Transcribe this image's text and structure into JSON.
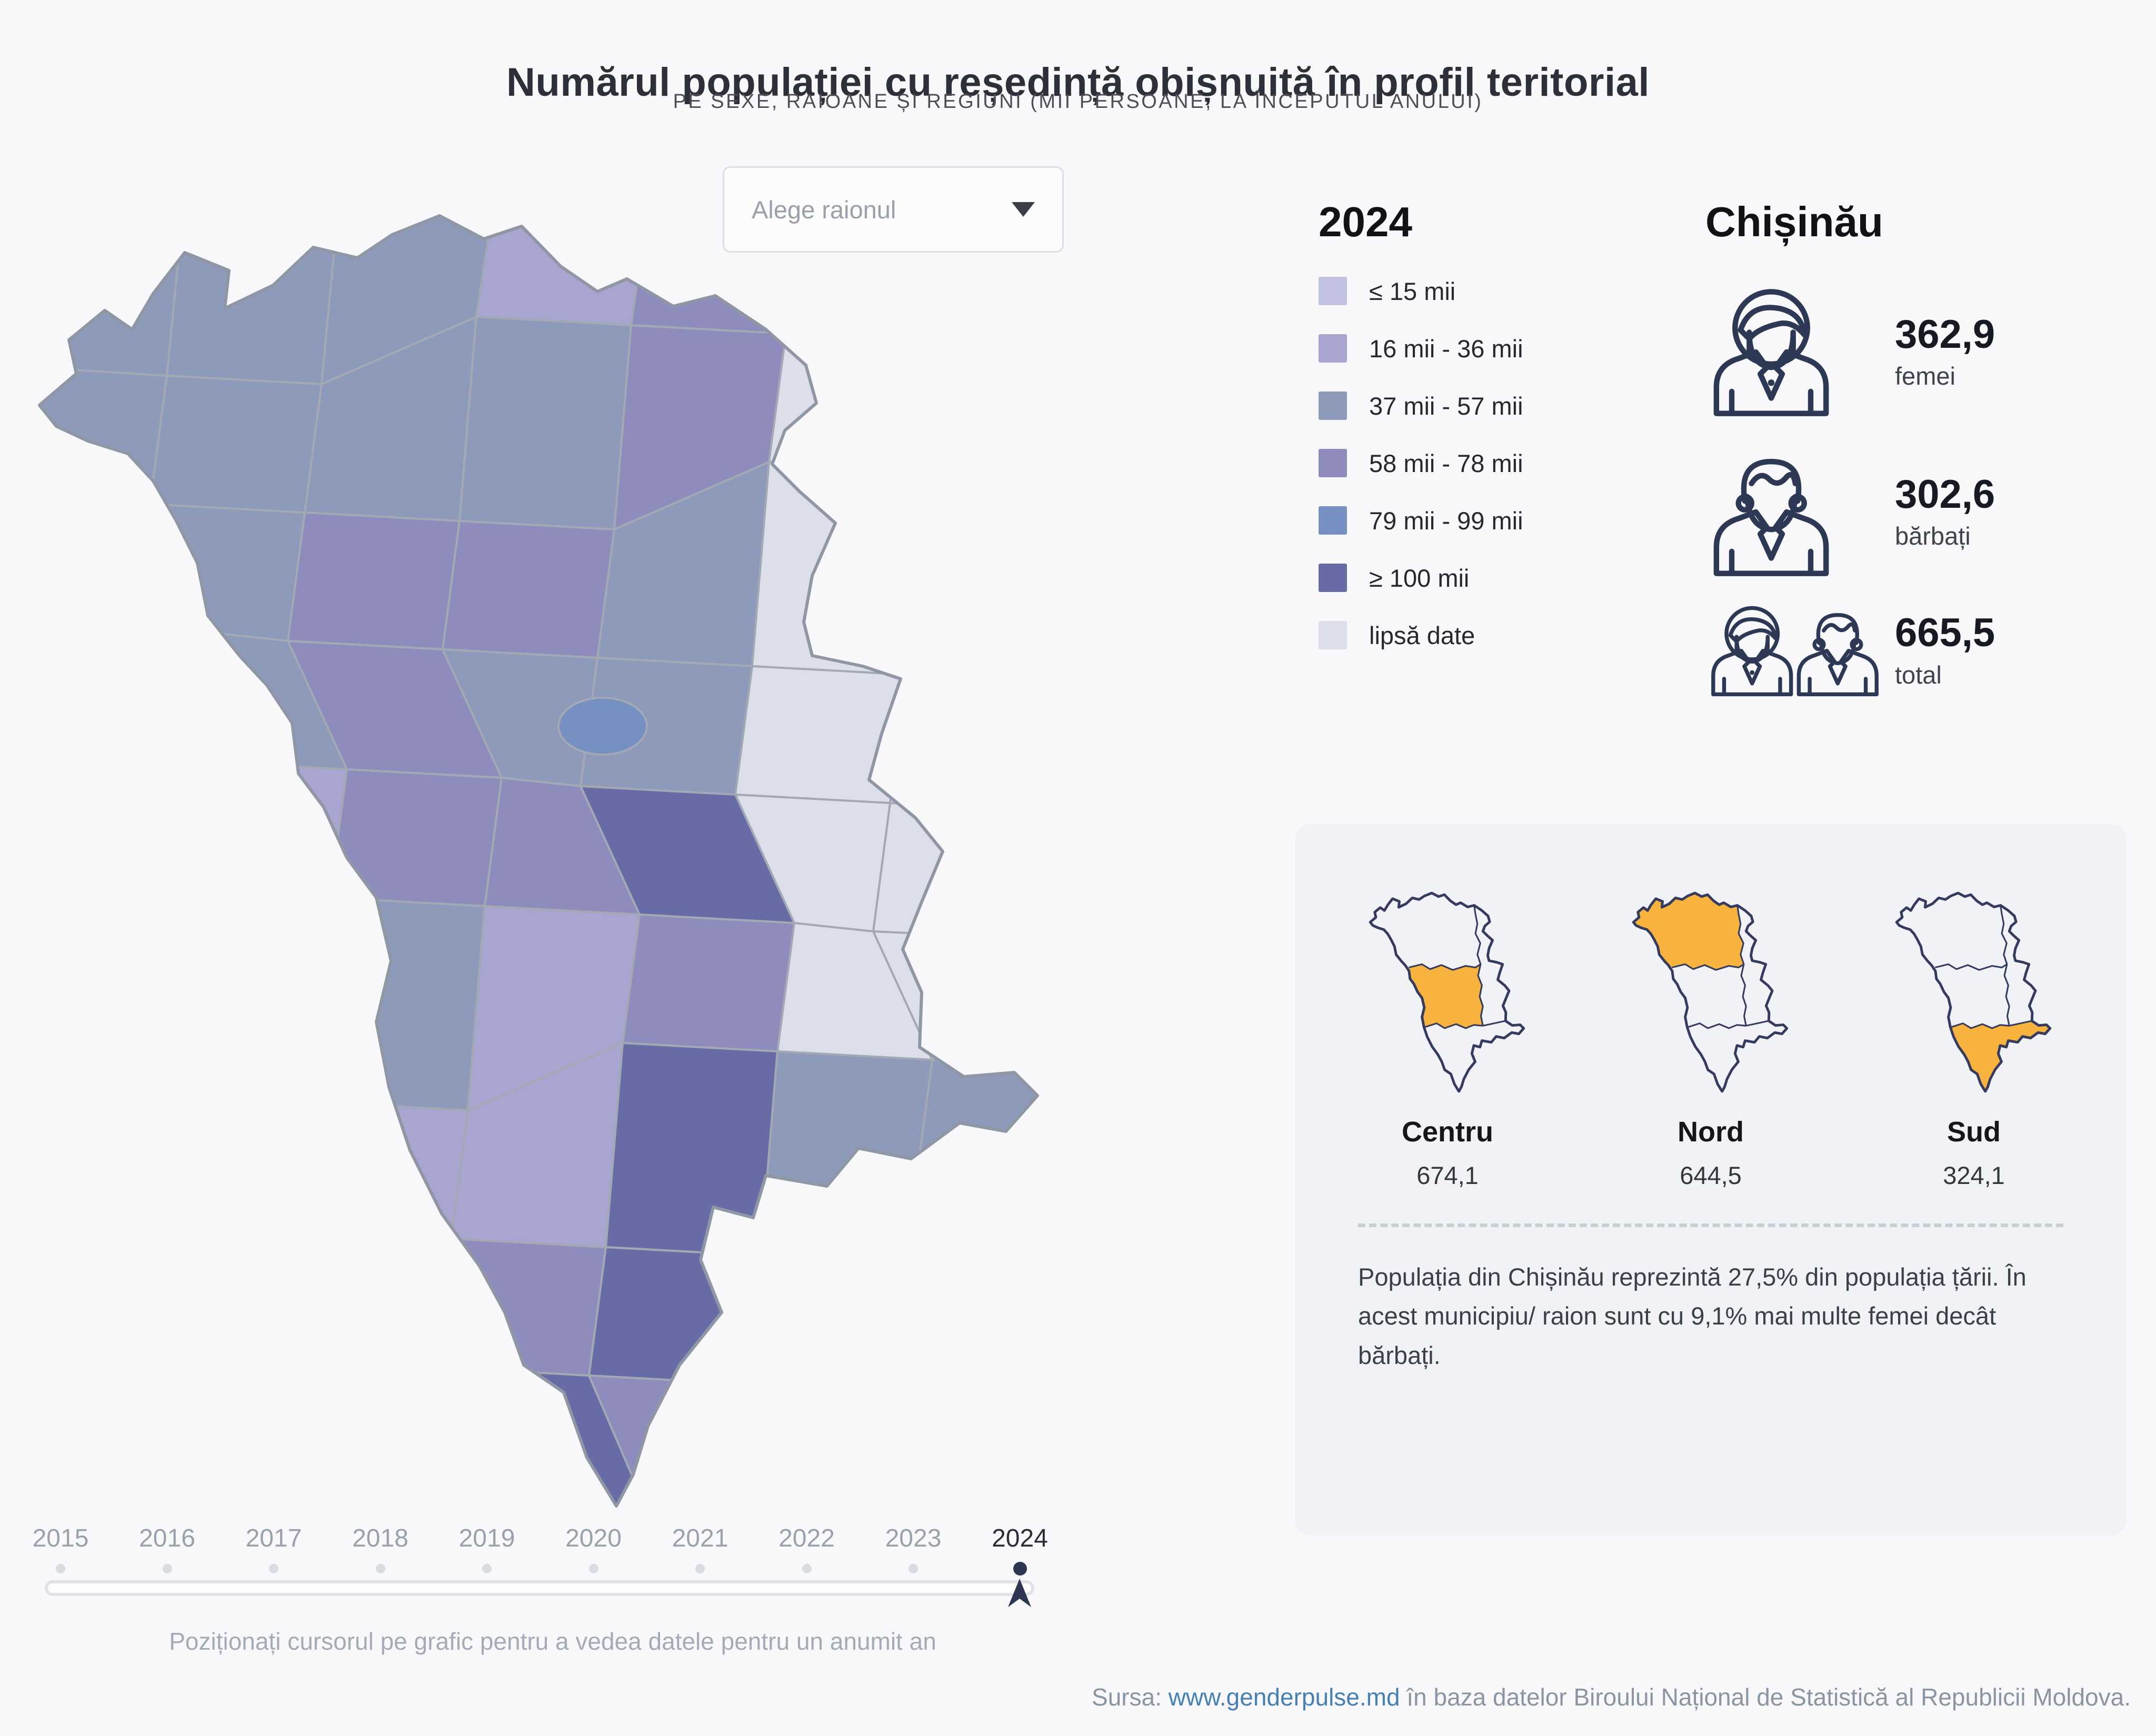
{
  "header": {
    "title": "Numărul populației cu reședință obișnuită în profil teritorial",
    "subtitle": "PE SEXE, RAIOANE ȘI REGIUNI (MII PERSOANE, LA ÎNCEPUTUL ANULUI)"
  },
  "dropdown": {
    "placeholder": "Alege raionul"
  },
  "legend": {
    "year": "2024",
    "items": [
      {
        "label": "≤ 15 mii",
        "color": "#c2c3e3"
      },
      {
        "label": "16 mii - 36 mii",
        "color": "#a8a5d0"
      },
      {
        "label": "37 mii - 57 mii",
        "color": "#8d9aba"
      },
      {
        "label": "58 mii - 78 mii",
        "color": "#8e8cbc"
      },
      {
        "label": "79 mii - 99 mii",
        "color": "#7590c1"
      },
      {
        "label": "≥ 100 mii",
        "color": "#686ca6"
      },
      {
        "label": "lipsă date",
        "color": "#dcdfe9"
      }
    ]
  },
  "chisinau": {
    "name": "Chișinău",
    "stats": [
      {
        "value": "362,9",
        "label": "femei",
        "icon": "female-icon"
      },
      {
        "value": "302,6",
        "label": "bărbați",
        "icon": "male-icon"
      },
      {
        "value": "665,5",
        "label": "total",
        "icon": "total-icon"
      }
    ]
  },
  "regions_panel": {
    "regions": [
      {
        "name": "Centru",
        "value": "674,1",
        "highlight": "centru"
      },
      {
        "name": "Nord",
        "value": "644,5",
        "highlight": "nord"
      },
      {
        "name": "Sud",
        "value": "324,1",
        "highlight": "sud"
      }
    ],
    "note": "Populația din Chișinău reprezintă 27,5% din populația țării. În acest municipiu/ raion sunt cu 9,1% mai multe femei decât bărbați."
  },
  "timeline": {
    "years": [
      "2015",
      "2016",
      "2017",
      "2018",
      "2019",
      "2020",
      "2021",
      "2022",
      "2023",
      "2024"
    ],
    "active_year": "2024",
    "hint": "Poziționați cursorul pe grafic pentru a vedea datele pentru un anumit an"
  },
  "source": {
    "prefix": "Sursa:",
    "link": "www.genderpulse.md",
    "suffix": "în baza datelor Biroului Național de Statistică al Republicii Moldova."
  },
  "map": {
    "border": "#a3a9b4",
    "outline": "#8f96a4",
    "classes": [
      "#c2c3e3",
      "#a8a5d0",
      "#8d9aba",
      "#8e8cbc",
      "#7590c1",
      "#686ca6",
      "#dcdfe9"
    ],
    "matrix": [
      [
        2,
        2,
        2,
        1,
        3,
        6,
        6
      ],
      [
        2,
        2,
        2,
        2,
        3,
        6,
        6
      ],
      [
        2,
        2,
        3,
        3,
        2,
        6,
        6
      ],
      [
        2,
        2,
        3,
        2,
        2,
        6,
        6
      ],
      [
        2,
        1,
        3,
        3,
        5,
        6,
        6
      ],
      [
        1,
        1,
        2,
        1,
        3,
        6,
        6
      ],
      [
        1,
        1,
        1,
        1,
        5,
        2,
        2
      ],
      [
        1,
        1,
        1,
        3,
        5,
        2,
        2
      ],
      [
        1,
        1,
        1,
        5,
        3,
        2,
        2
      ]
    ],
    "balti_class": 4,
    "mini": {
      "fill": "#f1f2f5",
      "stroke": "#353b5e",
      "highlight": "#f7b33e"
    },
    "icon_stroke": "#2d3954",
    "marker_color": "#2d3650"
  },
  "chart_data": {
    "type": "heatmap",
    "subtype": "choropleth_map",
    "title": "Numărul populației cu reședință obișnuită în profil teritorial",
    "unit": "mii persoane, la începutul anului",
    "year": 2024,
    "legend": [
      "≤ 15 mii",
      "16 mii - 36 mii",
      "37 mii - 57 mii",
      "58 mii - 78 mii",
      "79 mii - 99 mii",
      "≥ 100 mii",
      "lipsă date"
    ],
    "legend_position": "right",
    "selected_area": {
      "name": "Chișinău",
      "femei": "362,9",
      "bărbați": "302,6",
      "total": "665,5"
    },
    "regions": [
      {
        "name": "Centru",
        "total": "674,1"
      },
      {
        "name": "Nord",
        "total": "644,5"
      },
      {
        "name": "Sud",
        "total": "324,1"
      }
    ],
    "timeline": {
      "years": [
        2015,
        2016,
        2017,
        2018,
        2019,
        2020,
        2021,
        2022,
        2023,
        2024
      ],
      "selected": 2024
    },
    "note": "Populația din Chișinău reprezintă 27,5% din populația țării. În acest municipiu/ raion sunt cu 9,1% mai multe femei decât bărbați."
  }
}
